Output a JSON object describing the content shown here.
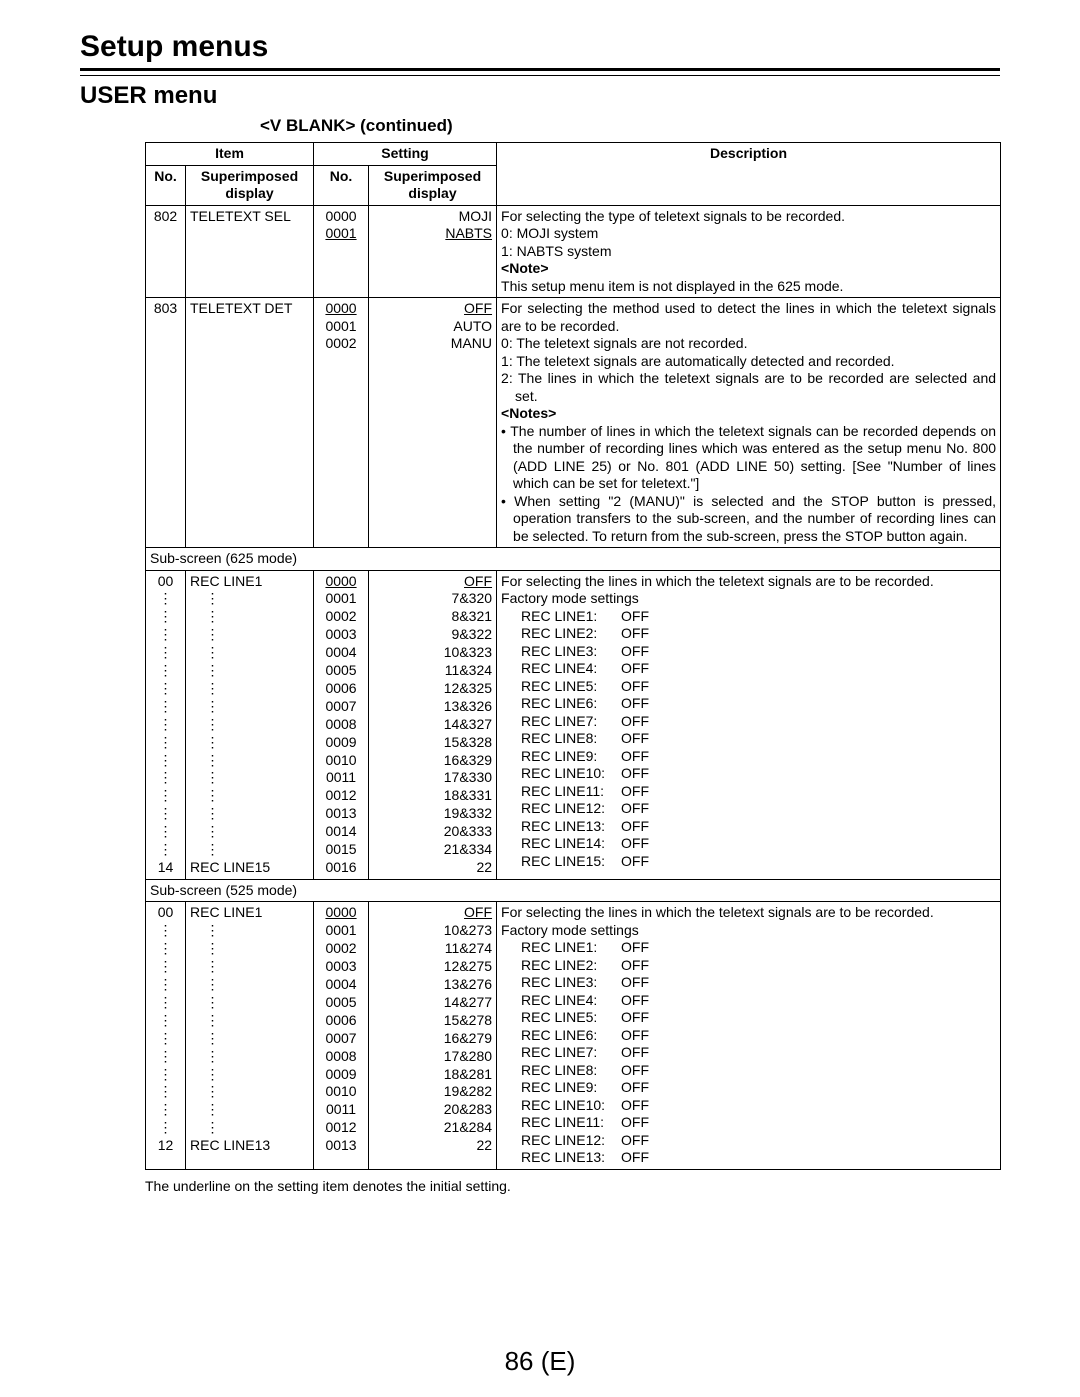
{
  "page": {
    "main_title": "Setup menus",
    "sub_title": "USER menu",
    "section_title": "<V BLANK> (continued)",
    "footnote": "The underline on the setting item denotes the initial setting.",
    "page_number": "86 (E)"
  },
  "headers": {
    "item": "Item",
    "setting": "Setting",
    "description": "Description",
    "no": "No.",
    "superimposed_display": "Superimposed display"
  },
  "rows": {
    "r802": {
      "no": "802",
      "item": "TELETEXT SEL",
      "settings_no": [
        "0000",
        "0001"
      ],
      "settings_disp": [
        "MOJI",
        "NABTS"
      ],
      "default_idx": 1,
      "desc_intro": "For selecting the type of teletext signals to be recorded.",
      "desc_lines": [
        "0: MOJI system",
        "1: NABTS system"
      ],
      "note_label": "<Note>",
      "note": "This setup menu item is not displayed in the 625 mode."
    },
    "r803": {
      "no": "803",
      "item": "TELETEXT DET",
      "settings_no": [
        "0000",
        "0001",
        "0002"
      ],
      "settings_disp": [
        "OFF",
        "AUTO",
        "MANU"
      ],
      "default_idx": 0,
      "desc_intro": "For selecting the method used to detect the lines in which the teletext signals are to be recorded.",
      "desc_lines": [
        "0: The teletext signals are not recorded.",
        "1: The teletext signals are automatically detected and recorded.",
        "2: The lines in which the teletext signals are to be recorded are selected and set."
      ],
      "notes_label": "<Notes>",
      "notes_bullets": [
        "The number of lines in which the teletext signals can be recorded depends on the number of recording lines which was entered as the setup menu No. 800 (ADD LINE 25) or No. 801 (ADD LINE 50) setting. [See \"Number of lines which can be set for teletext.\"]",
        "When setting \"2 (MANU)\" is selected and the STOP button is pressed, operation transfers to the sub-screen, and the number of recording lines can be selected. To return from the sub-screen, press the STOP button again."
      ]
    },
    "sub625": {
      "label": "Sub-screen (625 mode)",
      "no_first": "00",
      "no_last": "14",
      "item_first": "REC LINE1",
      "item_last": "REC LINE15",
      "settings_no": [
        "0000",
        "0001",
        "0002",
        "0003",
        "0004",
        "0005",
        "0006",
        "0007",
        "0008",
        "0009",
        "0010",
        "0011",
        "0012",
        "0013",
        "0014",
        "0015",
        "0016"
      ],
      "settings_disp": [
        "OFF",
        "7&320",
        "8&321",
        "9&322",
        "10&323",
        "11&324",
        "12&325",
        "13&326",
        "14&327",
        "15&328",
        "16&329",
        "17&330",
        "18&331",
        "19&332",
        "20&333",
        "21&334",
        "22"
      ],
      "default_idx": 0,
      "desc_intro": "For selecting the lines in which the teletext signals are to be recorded.",
      "desc_subhead": "Factory mode settings",
      "rec_lines": [
        [
          "REC LINE1:",
          "OFF"
        ],
        [
          "REC LINE2:",
          "OFF"
        ],
        [
          "REC LINE3:",
          "OFF"
        ],
        [
          "REC LINE4:",
          "OFF"
        ],
        [
          "REC LINE5:",
          "OFF"
        ],
        [
          "REC LINE6:",
          "OFF"
        ],
        [
          "REC LINE7:",
          "OFF"
        ],
        [
          "REC LINE8:",
          "OFF"
        ],
        [
          "REC LINE9:",
          "OFF"
        ],
        [
          "REC LINE10:",
          "OFF"
        ],
        [
          "REC LINE11:",
          "OFF"
        ],
        [
          "REC LINE12:",
          "OFF"
        ],
        [
          "REC LINE13:",
          "OFF"
        ],
        [
          "REC LINE14:",
          "OFF"
        ],
        [
          "REC LINE15:",
          "OFF"
        ]
      ]
    },
    "sub525": {
      "label": "Sub-screen (525 mode)",
      "no_first": "00",
      "no_last": "12",
      "item_first": "REC LINE1",
      "item_last": "REC LINE13",
      "settings_no": [
        "0000",
        "0001",
        "0002",
        "0003",
        "0004",
        "0005",
        "0006",
        "0007",
        "0008",
        "0009",
        "0010",
        "0011",
        "0012",
        "0013"
      ],
      "settings_disp": [
        "OFF",
        "10&273",
        "11&274",
        "12&275",
        "13&276",
        "14&277",
        "15&278",
        "16&279",
        "17&280",
        "18&281",
        "19&282",
        "20&283",
        "21&284",
        "22"
      ],
      "default_idx": 0,
      "desc_intro": "For selecting the lines in which the teletext signals are to be recorded.",
      "desc_subhead": "Factory mode settings",
      "rec_lines": [
        [
          "REC LINE1:",
          "OFF"
        ],
        [
          "REC LINE2:",
          "OFF"
        ],
        [
          "REC LINE3:",
          "OFF"
        ],
        [
          "REC LINE4:",
          "OFF"
        ],
        [
          "REC LINE5:",
          "OFF"
        ],
        [
          "REC LINE6:",
          "OFF"
        ],
        [
          "REC LINE7:",
          "OFF"
        ],
        [
          "REC LINE8:",
          "OFF"
        ],
        [
          "REC LINE9:",
          "OFF"
        ],
        [
          "REC LINE10:",
          "OFF"
        ],
        [
          "REC LINE11:",
          "OFF"
        ],
        [
          "REC LINE12:",
          "OFF"
        ],
        [
          "REC LINE13:",
          "OFF"
        ]
      ]
    }
  }
}
